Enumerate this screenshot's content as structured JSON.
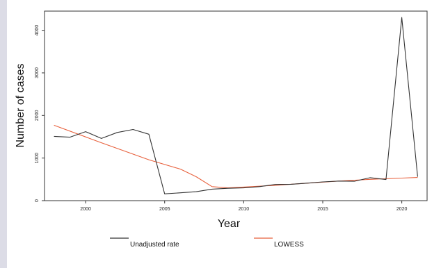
{
  "chart_data": {
    "type": "line",
    "xlabel": "Year",
    "ylabel": "Number of cases",
    "xlim": [
      1997.4,
      2021.6
    ],
    "ylim": [
      0,
      4450
    ],
    "x_ticks": [
      2000,
      2005,
      2010,
      2015,
      2020
    ],
    "x_tick_labels": [
      "2000",
      "2005",
      "2010",
      "2015",
      "2020"
    ],
    "y_ticks": [
      0,
      1000,
      2000,
      3000,
      4000
    ],
    "y_tick_labels": [
      "0",
      "1000",
      "2000",
      "3000",
      "4000"
    ],
    "grid": false,
    "legend_position": "bottom",
    "series": [
      {
        "name": "Unadjusted rate",
        "color": "#333333",
        "x": [
          1998,
          1999,
          2000,
          2001,
          2002,
          2003,
          2004,
          2005,
          2006,
          2007,
          2008,
          2009,
          2010,
          2011,
          2012,
          2013,
          2014,
          2015,
          2016,
          2017,
          2018,
          2019,
          2020,
          2021
        ],
        "y": [
          1510,
          1490,
          1620,
          1460,
          1600,
          1670,
          1560,
          160,
          185,
          210,
          270,
          290,
          300,
          330,
          380,
          385,
          410,
          440,
          460,
          455,
          540,
          495,
          4300,
          560
        ]
      },
      {
        "name": "LOWESS",
        "color": "#e8603c",
        "x": [
          1998,
          2001,
          2004,
          2006,
          2007,
          2008,
          2009,
          2010,
          2012,
          2014,
          2016,
          2018,
          2020,
          2021
        ],
        "y": [
          1770,
          1360,
          960,
          740,
          560,
          330,
          300,
          320,
          360,
          410,
          460,
          500,
          530,
          545
        ]
      }
    ]
  }
}
